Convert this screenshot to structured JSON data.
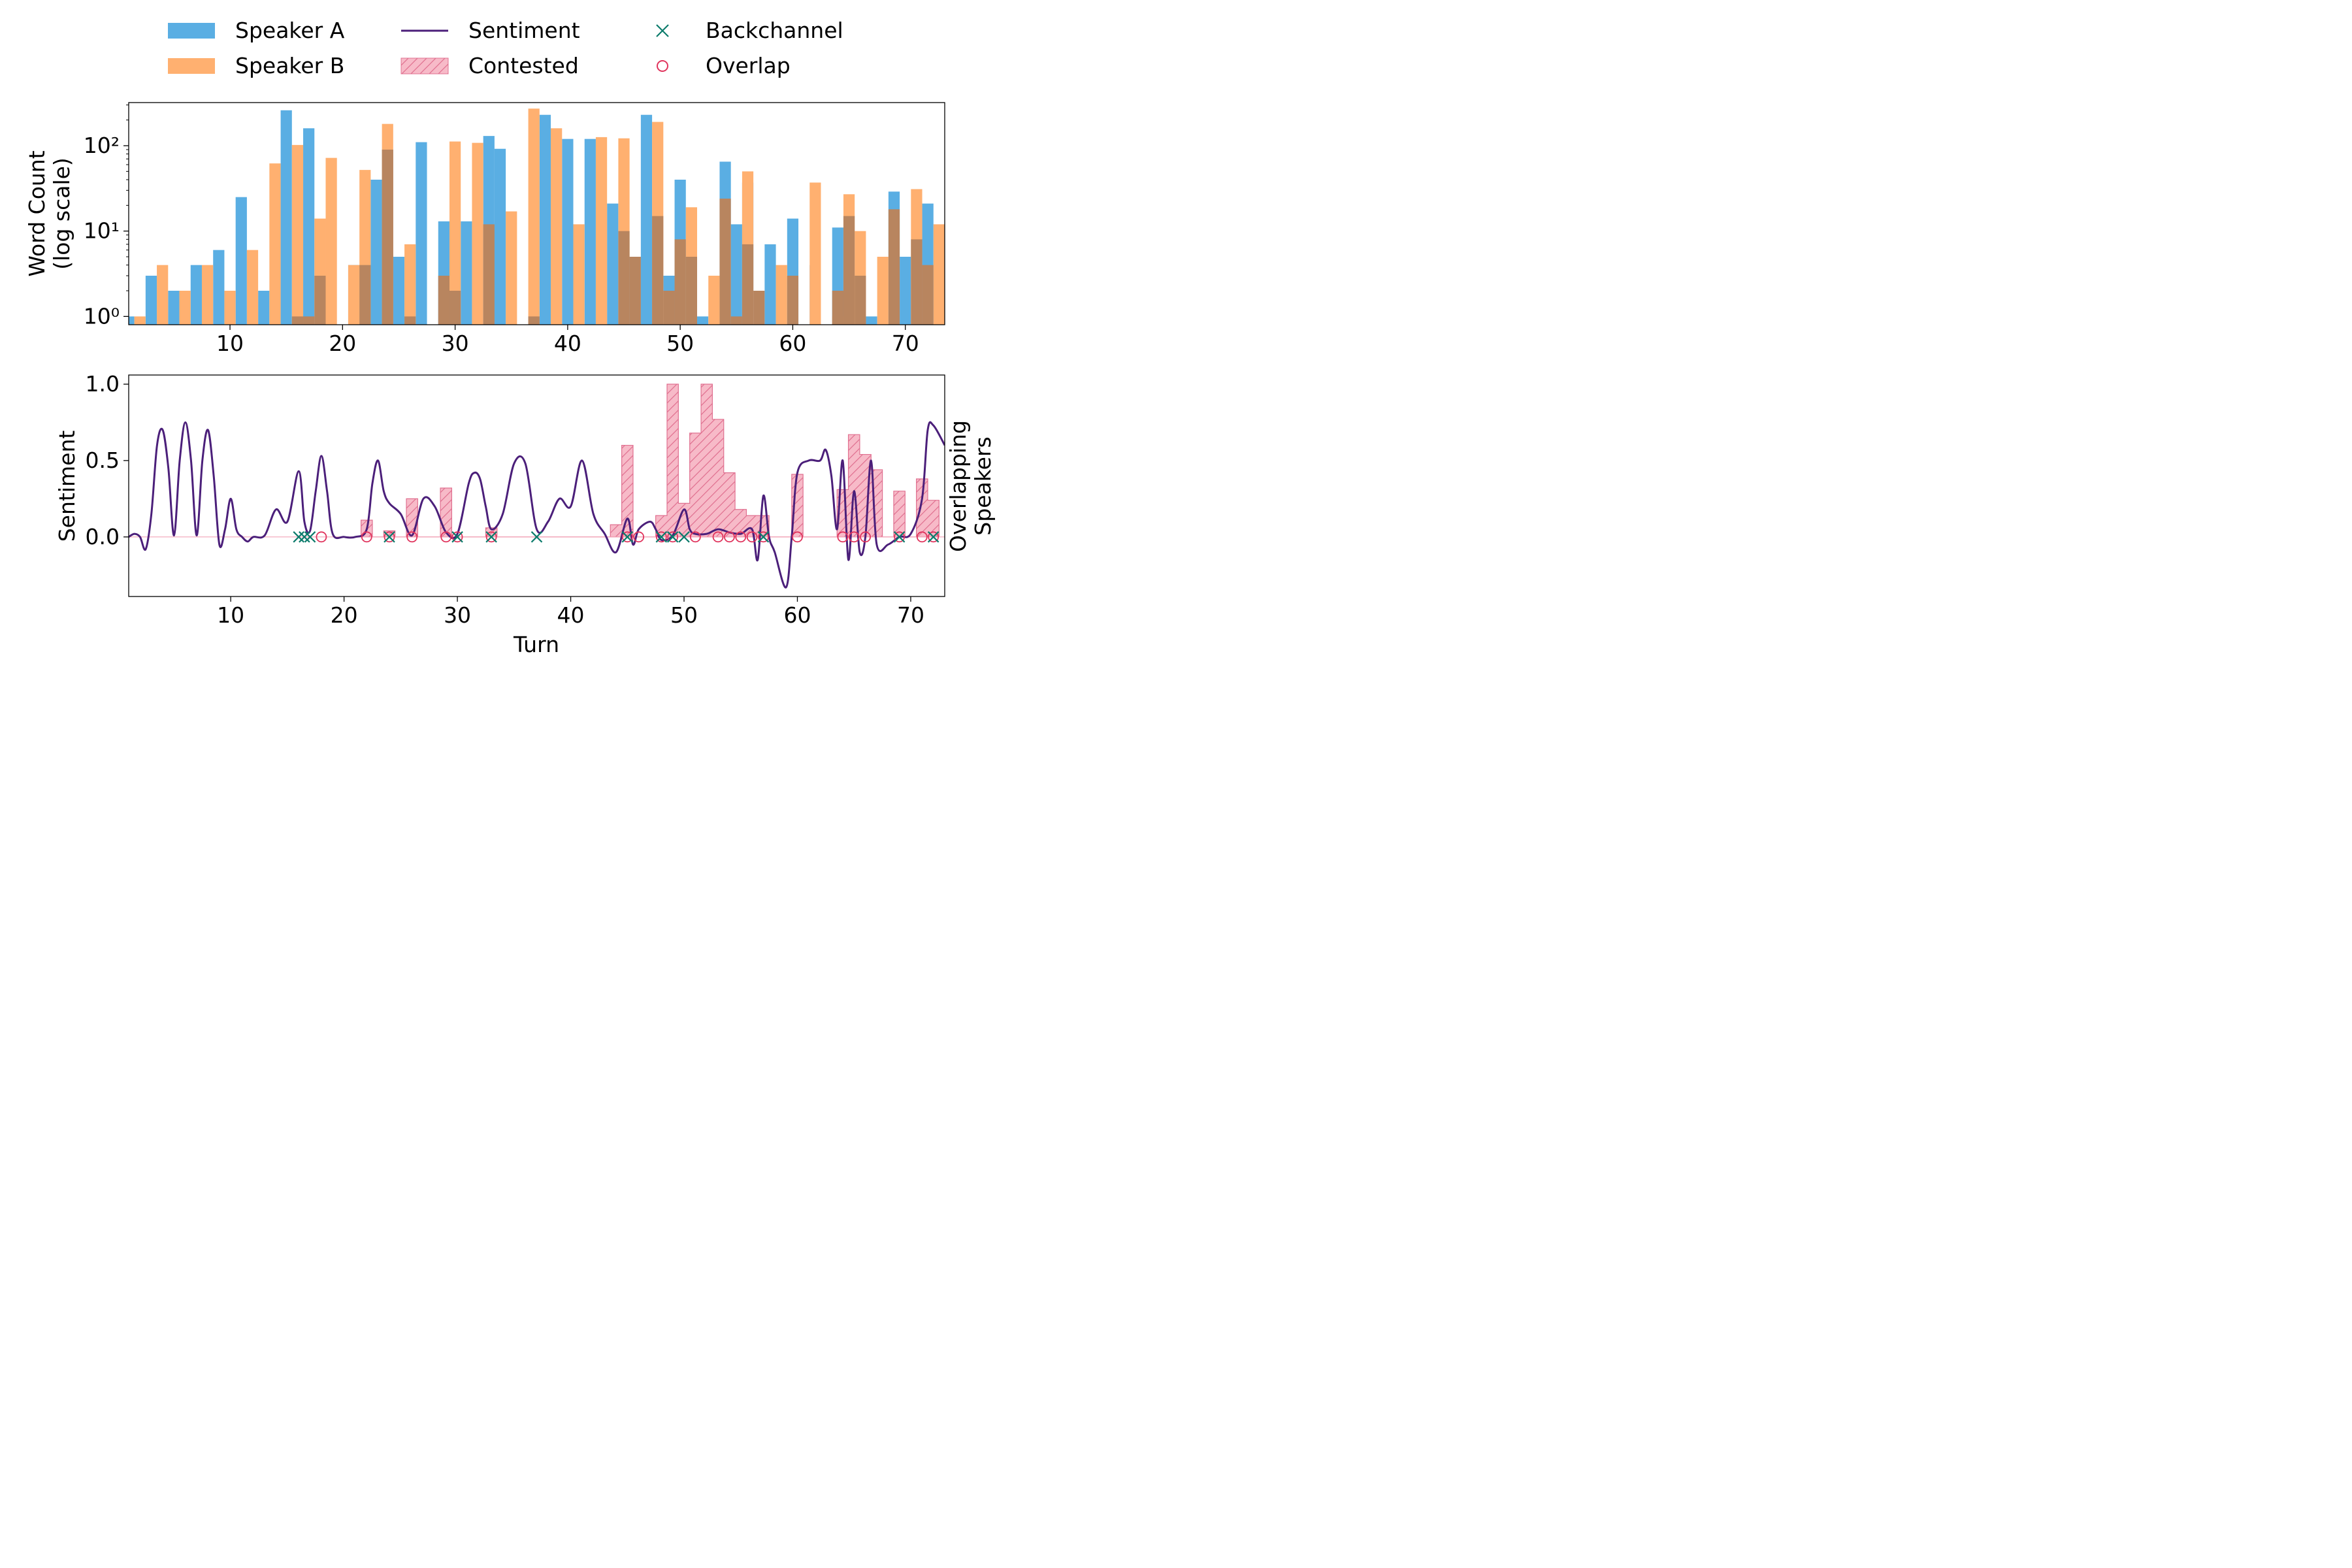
{
  "legend": {
    "placement": "top-center",
    "items": [
      {
        "label": "Speaker A",
        "kind": "bar",
        "color": "#5aaee3"
      },
      {
        "label": "Speaker B",
        "kind": "bar",
        "color": "#ffb070"
      },
      {
        "label": "Sentiment",
        "kind": "line",
        "color": "#4b1f7a"
      },
      {
        "label": "Contested",
        "kind": "hatch",
        "color": "#f4a3b6"
      },
      {
        "label": "Backchannel",
        "kind": "x-marker",
        "color": "#0b7b6b"
      },
      {
        "label": "Overlap",
        "kind": "o-marker",
        "color": "#e0335c"
      }
    ]
  },
  "chart_data": [
    {
      "type": "bar",
      "panel": "top",
      "ylabel": "Word Count\n(log scale)",
      "yscale": "log",
      "ylim": [
        0.8,
        320
      ],
      "xlim": [
        1,
        73.5
      ],
      "xticks": [
        10,
        20,
        30,
        40,
        50,
        60,
        70
      ],
      "yticks": [
        1,
        10,
        100
      ],
      "ytick_labels": [
        "10⁰",
        "10¹",
        "10²"
      ],
      "turns": [
        1,
        2,
        3,
        4,
        5,
        6,
        7,
        8,
        9,
        10,
        11,
        12,
        13,
        14,
        15,
        16,
        17,
        18,
        19,
        20,
        21,
        22,
        23,
        24,
        25,
        26,
        27,
        28,
        29,
        30,
        31,
        32,
        33,
        34,
        35,
        36,
        37,
        38,
        39,
        40,
        41,
        42,
        43,
        44,
        45,
        46,
        47,
        48,
        49,
        50,
        51,
        52,
        53,
        54,
        55,
        56,
        57,
        58,
        59,
        60,
        61,
        62,
        63,
        64,
        65,
        66,
        67,
        68,
        69,
        70,
        71,
        72,
        73
      ],
      "series": [
        {
          "name": "Speaker A",
          "color": "#5aaee3",
          "values": [
            1,
            0,
            3,
            0,
            2,
            0,
            4,
            0,
            6,
            0,
            25,
            0,
            2,
            0,
            260,
            0,
            160,
            0,
            0,
            0,
            4,
            0,
            40,
            90,
            5,
            0,
            110,
            0,
            13,
            0,
            13,
            0,
            130,
            92,
            0,
            0,
            1,
            230,
            0,
            120,
            0,
            120,
            0,
            21,
            0,
            5,
            230,
            0,
            3,
            40,
            0,
            1,
            0,
            65,
            12,
            37,
            0,
            7,
            0,
            14,
            0,
            4,
            0,
            11,
            0,
            0,
            1,
            0,
            29,
            5,
            0,
            21,
            0
          ]
        },
        {
          "name": "Speaker B",
          "color": "#ffb070",
          "values": [
            0,
            1,
            0,
            4,
            0,
            2,
            0,
            4,
            0,
            2,
            0,
            6,
            0,
            62,
            0,
            102,
            0,
            14,
            72,
            0,
            4,
            52,
            0,
            180,
            0,
            7,
            0,
            0,
            0,
            112,
            0,
            108,
            0,
            0,
            17,
            0,
            272,
            0,
            160,
            0,
            12,
            0,
            126,
            0,
            122,
            0,
            0,
            190,
            0,
            0,
            19,
            0,
            3,
            0,
            0,
            50,
            0,
            0,
            4,
            0,
            0,
            37,
            0,
            1,
            27,
            10,
            0,
            5,
            0,
            0,
            31,
            0,
            12
          ]
        },
        {
          "name": "",
          "color": "#b8855f",
          "values": [
            0,
            0,
            0,
            0,
            0,
            0,
            0,
            0,
            0,
            0,
            0,
            0,
            0,
            0,
            0,
            1,
            1,
            3,
            0,
            0,
            0,
            4,
            0,
            90,
            0,
            1,
            0,
            0,
            3,
            2,
            0,
            0,
            12,
            0,
            0,
            0,
            1,
            0,
            0,
            0,
            0,
            0,
            0,
            0,
            10,
            5,
            0,
            15,
            2,
            8,
            5,
            0,
            0,
            24,
            1,
            7,
            2,
            0,
            0,
            3,
            0,
            0,
            0,
            2,
            15,
            3,
            0,
            0,
            18,
            0,
            8,
            4,
            0
          ]
        }
      ]
    },
    {
      "type": "line",
      "panel": "bottom",
      "xlabel": "Turn",
      "ylabel": "Sentiment",
      "right_label": "Overlapping\nSpeakers",
      "ylim": [
        -0.39,
        1.06
      ],
      "xlim": [
        1,
        73
      ],
      "xticks": [
        10,
        20,
        30,
        40,
        50,
        60,
        70
      ],
      "yticks": [
        0.0,
        0.5,
        1.0
      ],
      "ytick_labels": [
        "0.0",
        "0.5",
        "1.0"
      ],
      "sentiment": {
        "name": "Sentiment",
        "color": "#4b1f7a",
        "points": [
          [
            1,
            0
          ],
          [
            1.5,
            0.02
          ],
          [
            2,
            0
          ],
          [
            2.5,
            -0.08
          ],
          [
            3,
            0.15
          ],
          [
            3.5,
            0.6
          ],
          [
            4,
            0.7
          ],
          [
            4.5,
            0.45
          ],
          [
            5,
            0.01
          ],
          [
            5.5,
            0.5
          ],
          [
            6,
            0.75
          ],
          [
            6.5,
            0.5
          ],
          [
            7,
            0.01
          ],
          [
            7.5,
            0.5
          ],
          [
            8,
            0.7
          ],
          [
            8.5,
            0.4
          ],
          [
            9,
            -0.05
          ],
          [
            9.5,
            0.05
          ],
          [
            10,
            0.25
          ],
          [
            10.5,
            0.05
          ],
          [
            11,
            0
          ],
          [
            11.5,
            -0.03
          ],
          [
            12,
            0
          ],
          [
            13,
            0.01
          ],
          [
            14,
            0.18
          ],
          [
            15,
            0.1
          ],
          [
            16,
            0.43
          ],
          [
            16.5,
            0.1
          ],
          [
            17,
            0.04
          ],
          [
            17.5,
            0.3
          ],
          [
            18,
            0.53
          ],
          [
            18.5,
            0.3
          ],
          [
            19,
            0.02
          ],
          [
            20,
            0
          ],
          [
            21,
            0
          ],
          [
            22,
            0.05
          ],
          [
            22.5,
            0.35
          ],
          [
            23,
            0.5
          ],
          [
            23.5,
            0.3
          ],
          [
            24,
            0.22
          ],
          [
            25,
            0.15
          ],
          [
            26,
            0.01
          ],
          [
            27,
            0.25
          ],
          [
            28,
            0.2
          ],
          [
            29,
            0.03
          ],
          [
            30,
            0.02
          ],
          [
            31,
            0.35
          ],
          [
            31.5,
            0.42
          ],
          [
            32,
            0.38
          ],
          [
            32.5,
            0.2
          ],
          [
            33,
            0.05
          ],
          [
            34,
            0.15
          ],
          [
            35,
            0.48
          ],
          [
            36,
            0.48
          ],
          [
            37,
            0.05
          ],
          [
            38,
            0.1
          ],
          [
            39,
            0.25
          ],
          [
            40,
            0.2
          ],
          [
            41,
            0.5
          ],
          [
            42,
            0.15
          ],
          [
            43,
            0.02
          ],
          [
            44,
            -0.1
          ],
          [
            45,
            0.12
          ],
          [
            45.5,
            -0.05
          ],
          [
            46,
            0.05
          ],
          [
            47,
            0.1
          ],
          [
            47.5,
            0.05
          ],
          [
            48,
            -0.02
          ],
          [
            49,
            0.01
          ],
          [
            50,
            0.18
          ],
          [
            50.5,
            0.05
          ],
          [
            51,
            0.02
          ],
          [
            52,
            0.02
          ],
          [
            53,
            0.05
          ],
          [
            54,
            0.03
          ],
          [
            55,
            0.02
          ],
          [
            56,
            0.05
          ],
          [
            56.5,
            -0.15
          ],
          [
            57,
            0.27
          ],
          [
            57.5,
            0
          ],
          [
            58,
            -0.1
          ],
          [
            59,
            -0.33
          ],
          [
            59.5,
            0
          ],
          [
            60,
            0.42
          ],
          [
            61,
            0.5
          ],
          [
            62,
            0.5
          ],
          [
            62.5,
            0.57
          ],
          [
            63,
            0.4
          ],
          [
            63.5,
            0.05
          ],
          [
            64,
            0.5
          ],
          [
            64.5,
            -0.15
          ],
          [
            65,
            0.3
          ],
          [
            65.5,
            -0.1
          ],
          [
            66,
            0
          ],
          [
            66.5,
            0.5
          ],
          [
            67,
            -0.05
          ],
          [
            68,
            -0.05
          ],
          [
            69,
            0
          ],
          [
            70,
            0.02
          ],
          [
            71,
            0.25
          ],
          [
            71.5,
            0.7
          ],
          [
            72,
            0.73
          ],
          [
            73,
            0.6
          ]
        ]
      },
      "contested": {
        "name": "Contested",
        "color": "#f4a3b6",
        "turns": [
          22,
          23,
          24,
          25,
          26,
          27,
          28,
          29,
          30,
          31,
          32,
          33,
          34,
          35,
          36,
          37,
          38,
          39,
          40,
          41,
          42,
          43,
          44,
          45,
          46,
          47,
          48,
          49,
          50,
          51,
          52,
          53,
          54,
          55,
          56,
          57,
          58,
          59,
          60,
          61,
          62,
          63,
          64,
          65,
          66,
          67,
          68,
          69,
          70,
          71,
          72
        ],
        "values": [
          0.11,
          0,
          0.04,
          0,
          0.25,
          0,
          0,
          0.32,
          0,
          0,
          0,
          0.06,
          0,
          0,
          0,
          0,
          0,
          0,
          0,
          0,
          0,
          0,
          0.08,
          0.6,
          0,
          0,
          0.14,
          1.0,
          0.22,
          0.68,
          1.0,
          0.77,
          0.42,
          0.18,
          0.14,
          0.14,
          0,
          0,
          0.41,
          0,
          0,
          0,
          0.31,
          0.67,
          0.54,
          0.44,
          0,
          0.3,
          0,
          0.38,
          0.24
        ]
      },
      "backchannel": {
        "name": "Backchannel",
        "color": "#0b7b6b",
        "x": [
          16,
          16.5,
          17,
          24,
          30,
          33,
          37,
          45,
          48,
          49,
          50,
          57,
          69,
          72
        ]
      },
      "overlap": {
        "name": "Overlap",
        "color": "#e0335c",
        "x": [
          18,
          22,
          24,
          26,
          29,
          30,
          33,
          45,
          46,
          48,
          49,
          51,
          53,
          54,
          55,
          56,
          57,
          60,
          64,
          65,
          66,
          69,
          71,
          72
        ]
      }
    }
  ]
}
